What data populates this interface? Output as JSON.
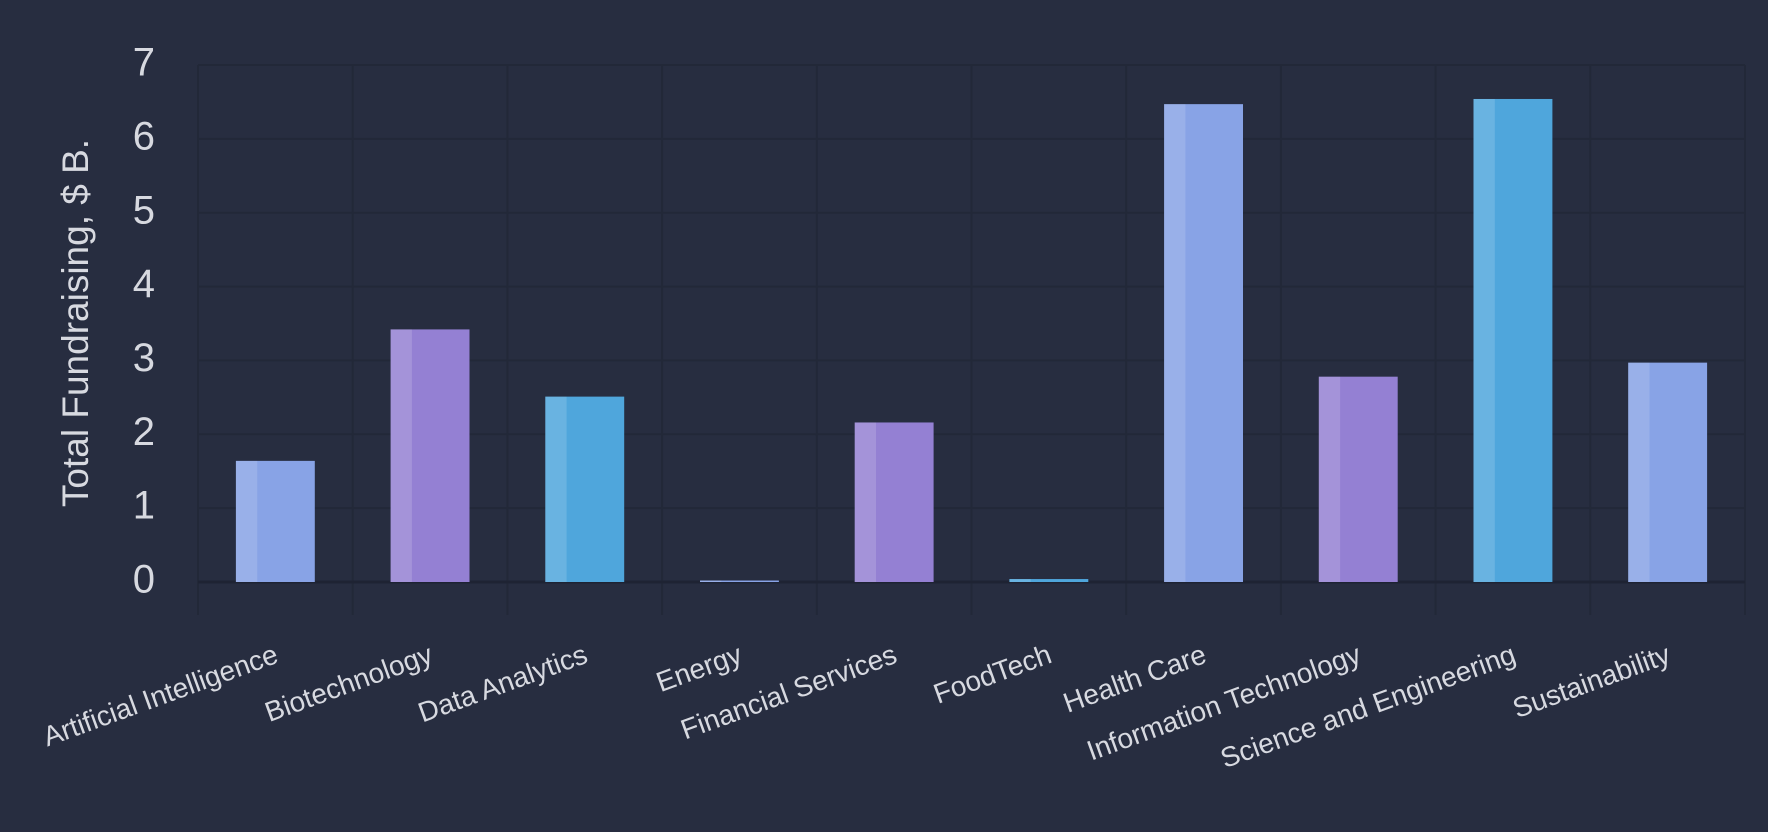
{
  "chart_data": {
    "type": "bar",
    "y_label": "Total Fundraising, $ B.",
    "categories": [
      "Artificial Intelligence",
      "Biotechnology",
      "Data Analytics",
      "Energy",
      "Financial Services",
      "FoodTech",
      "Health Care",
      "Information Technology",
      "Science and Engineering",
      "Sustainability"
    ],
    "values": [
      1.64,
      3.42,
      2.51,
      0.02,
      2.16,
      0.04,
      6.47,
      2.78,
      6.54,
      2.97
    ],
    "colors": [
      "#88a3e6",
      "#9480d3",
      "#4fa6dc",
      "#88a3e6",
      "#9480d3",
      "#4fa6dc",
      "#88a3e6",
      "#9480d3",
      "#4fa6dc",
      "#88a3e6"
    ],
    "ylim": [
      0,
      7
    ],
    "yticks": [
      0,
      1,
      2,
      3,
      4,
      5,
      6,
      7
    ],
    "grid": true
  }
}
